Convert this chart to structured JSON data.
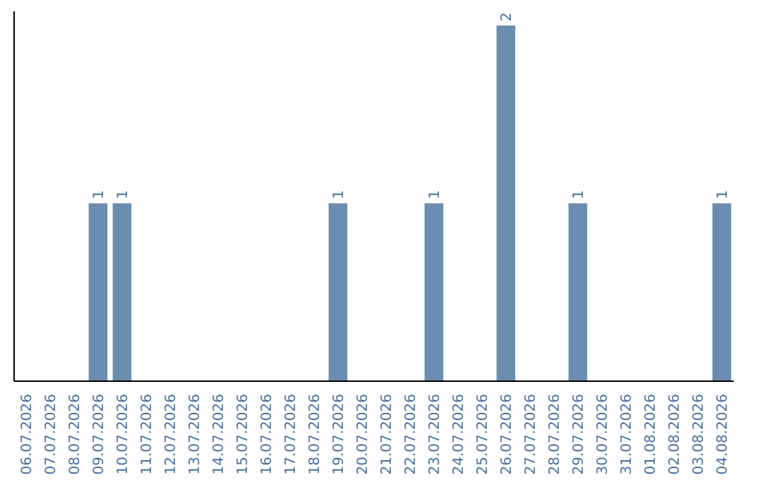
{
  "chart_data": {
    "type": "bar",
    "categories": [
      "06.07.2026",
      "07.07.2026",
      "08.07.2026",
      "09.07.2026",
      "10.07.2026",
      "11.07.2026",
      "12.07.2026",
      "13.07.2026",
      "14.07.2026",
      "15.07.2026",
      "16.07.2026",
      "17.07.2026",
      "18.07.2026",
      "19.07.2026",
      "20.07.2026",
      "21.07.2026",
      "22.07.2026",
      "23.07.2026",
      "24.07.2026",
      "25.07.2026",
      "26.07.2026",
      "27.07.2026",
      "28.07.2026",
      "29.07.2026",
      "30.07.2026",
      "31.07.2026",
      "01.08.2026",
      "02.08.2026",
      "03.08.2026",
      "04.08.2026"
    ],
    "values": [
      0,
      0,
      0,
      1,
      1,
      0,
      0,
      0,
      0,
      0,
      0,
      0,
      0,
      1,
      0,
      0,
      0,
      1,
      0,
      0,
      2,
      0,
      0,
      1,
      0,
      0,
      0,
      0,
      0,
      1
    ],
    "value_labels": [
      null,
      null,
      null,
      "1",
      "1",
      null,
      null,
      null,
      null,
      null,
      null,
      null,
      null,
      "1",
      null,
      null,
      null,
      "1",
      null,
      null,
      "2",
      null,
      null,
      "1",
      null,
      null,
      null,
      null,
      null,
      "1"
    ],
    "color": "#6a8caf"
  }
}
